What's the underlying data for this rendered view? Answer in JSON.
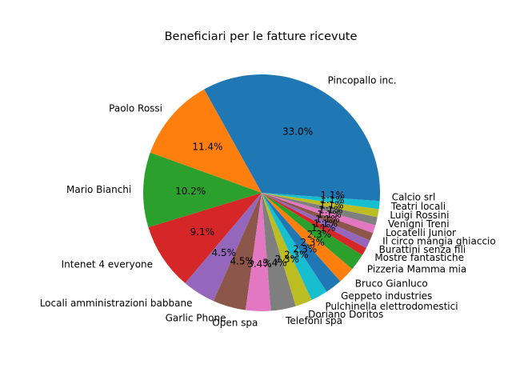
{
  "chart_data": {
    "type": "pie",
    "title": "Beneficiari per le fatture ricevute",
    "categories": [
      "Pincopallo inc.",
      "Paolo Rossi",
      "Mario Bianchi",
      "Intenet 4 everyone",
      "Locali amministrazioni babbane",
      "Garlic Phone",
      "Open spa",
      "Telefoni spa",
      "Doriano Doritos",
      "Pulchinella elettrodomestici",
      "Geppeto industries",
      "Bruco Gianluco",
      "Pizzeria Mamma mia",
      "Mostre fantastiche",
      "Burattini senza fili",
      "Il circo mangia ghiaccio",
      "Locatelli Junior",
      "Venigni Treni",
      "Luigi Rossini",
      "Teatri locali",
      "Calcio srl"
    ],
    "values": [
      33.0,
      11.4,
      10.2,
      9.1,
      4.5,
      4.5,
      3.4,
      3.4,
      2.3,
      2.3,
      2.3,
      2.3,
      2.3,
      1.1,
      1.1,
      1.1,
      1.1,
      1.1,
      1.1,
      1.1,
      1.1
    ],
    "value_labels": [
      "33.0%",
      "11.4%",
      "10.2%",
      "9.1%",
      "4.5%",
      "4.5%",
      "3.4%",
      "3.4%",
      "2.3%",
      "2.3%",
      "2.3%",
      "2.3%",
      "2.3%",
      "1.1%",
      "1.1%",
      "1.1%",
      "1.1%",
      "1.1%",
      "1.1%",
      "1.1%",
      "1.1%"
    ],
    "colors": [
      "#1f77b4",
      "#ff7f0e",
      "#2ca02c",
      "#d62728",
      "#9467bd",
      "#8c564b",
      "#e377c2",
      "#7f7f7f",
      "#bcbd22",
      "#17becf"
    ],
    "start_angle_deg": 0,
    "direction": "counterclockwise",
    "legend": "none"
  }
}
